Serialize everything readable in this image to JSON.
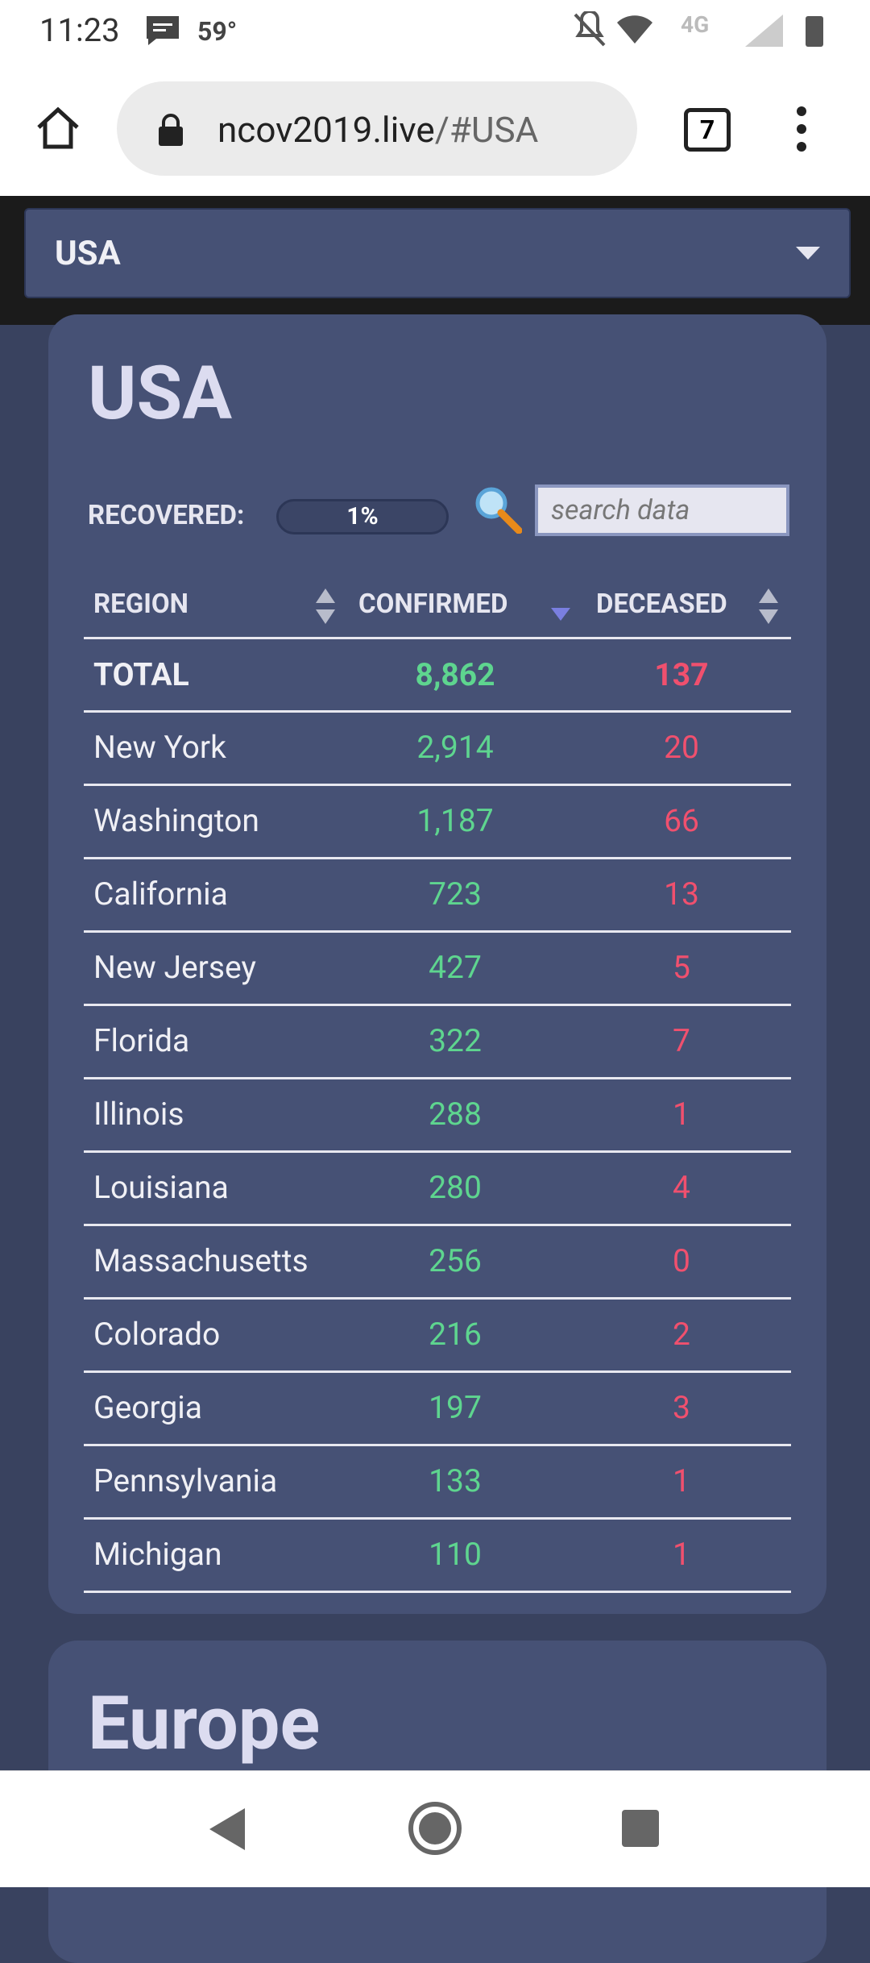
{
  "status_bar": {
    "time": "11:23",
    "temperature": "59°"
  },
  "browser": {
    "url_host": "ncov2019.live",
    "url_path": "/#USA",
    "tab_count": "7"
  },
  "region_select": {
    "selected": "USA"
  },
  "card": {
    "title": "USA",
    "recovered_label": "RECOVERED:",
    "recovered_percent": "1%",
    "search_placeholder": "search data"
  },
  "table": {
    "headers": [
      "REGION",
      "CONFIRMED",
      "DECEASED"
    ],
    "total": [
      "TOTAL",
      "8,862",
      "137"
    ],
    "rows": [
      [
        "New York",
        "2,914",
        "20"
      ],
      [
        "Washington",
        "1,187",
        "66"
      ],
      [
        "California",
        "723",
        "13"
      ],
      [
        "New Jersey",
        "427",
        "5"
      ],
      [
        "Florida",
        "322",
        "7"
      ],
      [
        "Illinois",
        "288",
        "1"
      ],
      [
        "Louisiana",
        "280",
        "4"
      ],
      [
        "Massachusetts",
        "256",
        "0"
      ],
      [
        "Colorado",
        "216",
        "2"
      ],
      [
        "Georgia",
        "197",
        "3"
      ],
      [
        "Pennsylvania",
        "133",
        "1"
      ],
      [
        "Michigan",
        "110",
        "1"
      ]
    ]
  },
  "next_card": {
    "title": "Europe"
  }
}
